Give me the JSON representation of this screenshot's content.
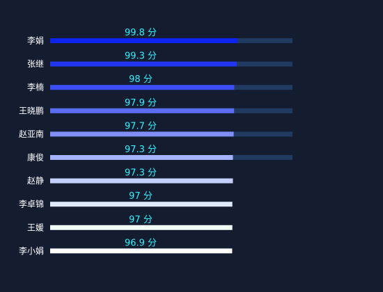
{
  "chart_data": {
    "type": "bar",
    "orientation": "horizontal",
    "title": "",
    "xlabel": "",
    "ylabel": "",
    "categories": [
      "李娟",
      "张继",
      "李楠",
      "王晓鹏",
      "赵亚南",
      "康俊",
      "赵静",
      "李卓锦",
      "王媛",
      "李小娟"
    ],
    "values": [
      99.8,
      99.3,
      98,
      97.9,
      97.7,
      97.3,
      97.3,
      97,
      97,
      96.9
    ],
    "value_labels": [
      "99.8 分",
      "99.3 分",
      "98 分",
      "97.9 分",
      "97.7 分",
      "97.3 分",
      "97.3 分",
      "97 分",
      "97 分",
      "96.9 分"
    ],
    "track_max": 129,
    "grid": false,
    "legend": "none",
    "colors": {
      "background": "#141c30",
      "track": "#213a62",
      "value_label": "#33f0ff",
      "category_label": "#ffffff",
      "bars": [
        "#0f24f0",
        "#2236f2",
        "#3a4ef4",
        "#5b6ef3",
        "#7f8ff6",
        "#a5b2f9",
        "#c4cffc",
        "#dfebfd",
        "#f1fbf6",
        "#ffffff"
      ]
    }
  }
}
